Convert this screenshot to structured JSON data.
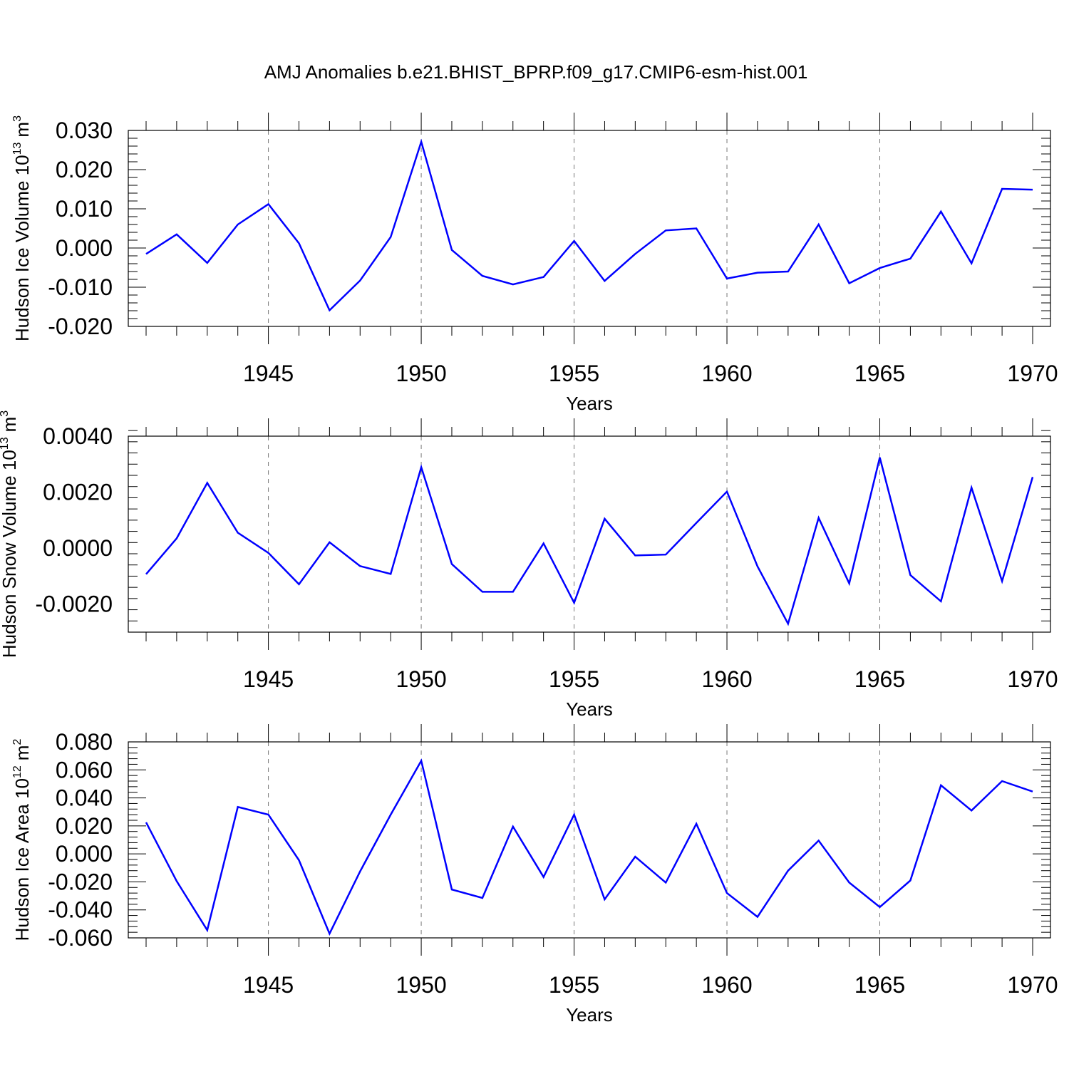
{
  "title": "AMJ Anomalies b.e21.BHIST_BPRP.f09_g17.CMIP6-esm-hist.001",
  "chart_data": [
    {
      "type": "line",
      "title": "AMJ Anomalies b.e21.BHIST_BPRP.f09_g17.CMIP6-esm-hist.001",
      "ylabel_main": "Hudson Ice Volume 10",
      "ylabel_exp": "13",
      "ylabel_unit": "m",
      "ylabel_unit_exp": "3",
      "xlabel": "Years",
      "xlim": [
        1941,
        1970
      ],
      "ylim": [
        -0.02,
        0.03
      ],
      "yticks": [
        -0.02,
        -0.01,
        0.0,
        0.01,
        0.02,
        0.03
      ],
      "ytick_labels": [
        "-0.020",
        "-0.010",
        "0.000",
        "0.010",
        "0.020",
        "0.030"
      ],
      "ytick_minor_step": 0.002,
      "xticks": [
        1945,
        1950,
        1955,
        1960,
        1965,
        1970
      ],
      "xtick_labels": [
        "1945",
        "1950",
        "1955",
        "1960",
        "1965",
        "1970"
      ],
      "grid": "dashed vertical at major x ticks",
      "line_color": "#0000ff",
      "series": [
        {
          "name": "Hudson Ice Volume",
          "x": [
            1941,
            1942,
            1943,
            1944,
            1945,
            1946,
            1947,
            1948,
            1949,
            1950,
            1951,
            1952,
            1953,
            1954,
            1955,
            1956,
            1957,
            1958,
            1959,
            1960,
            1961,
            1962,
            1963,
            1964,
            1965,
            1966,
            1967,
            1968,
            1969,
            1970
          ],
          "values": [
            -0.0015,
            0.0035,
            -0.0038,
            0.006,
            0.0112,
            0.0012,
            -0.0159,
            -0.0083,
            0.0028,
            0.0271,
            -0.0005,
            -0.0071,
            -0.0093,
            -0.0074,
            0.0018,
            -0.0084,
            -0.0015,
            0.0045,
            0.005,
            -0.0078,
            -0.0063,
            -0.006,
            0.006,
            -0.009,
            -0.0051,
            -0.0027,
            0.0093,
            -0.0039,
            0.0151,
            0.0149
          ]
        }
      ]
    },
    {
      "type": "line",
      "ylabel_main": "Hudson Snow Volume 10",
      "ylabel_exp": "13",
      "ylabel_unit": "m",
      "ylabel_unit_exp": "3",
      "xlabel": "Years",
      "xlim": [
        1941,
        1970
      ],
      "ylim": [
        -0.003,
        0.004
      ],
      "yticks": [
        -0.002,
        0.0,
        0.002,
        0.004
      ],
      "ytick_labels": [
        "-0.0020",
        "0.0000",
        "0.0020",
        "0.0040"
      ],
      "ytick_minor_step": 0.0004,
      "xticks": [
        1945,
        1950,
        1955,
        1960,
        1965,
        1970
      ],
      "xtick_labels": [
        "1945",
        "1950",
        "1955",
        "1960",
        "1965",
        "1970"
      ],
      "grid": "dashed vertical at major x ticks",
      "line_color": "#0000ff",
      "series": [
        {
          "name": "Hudson Snow Volume",
          "x": [
            1941,
            1942,
            1943,
            1944,
            1945,
            1946,
            1947,
            1948,
            1949,
            1950,
            1951,
            1952,
            1953,
            1954,
            1955,
            1956,
            1957,
            1958,
            1959,
            1960,
            1961,
            1962,
            1963,
            1964,
            1965,
            1966,
            1967,
            1968,
            1969,
            1970
          ],
          "values": [
            -0.00093,
            0.00035,
            0.00233,
            0.00055,
            -0.00017,
            -0.00129,
            0.00021,
            -0.00064,
            -0.00092,
            0.00289,
            -0.00057,
            -0.00156,
            -0.00156,
            0.00017,
            -0.00195,
            0.00105,
            -0.00026,
            -0.00023,
            0.0009,
            0.00202,
            -0.00065,
            -0.0027,
            0.00108,
            -0.00126,
            0.00324,
            -0.00096,
            -0.0019,
            0.00216,
            -0.00118,
            0.00254
          ]
        }
      ]
    },
    {
      "type": "line",
      "ylabel_main": "Hudson Ice Area 10",
      "ylabel_exp": "12",
      "ylabel_unit": "m",
      "ylabel_unit_exp": "2",
      "xlabel": "Years",
      "xlim": [
        1941,
        1970
      ],
      "ylim": [
        -0.06,
        0.08
      ],
      "yticks": [
        -0.06,
        -0.04,
        -0.02,
        0.0,
        0.02,
        0.04,
        0.06,
        0.08
      ],
      "ytick_labels": [
        "-0.060",
        "-0.040",
        "-0.020",
        "0.000",
        "0.020",
        "0.040",
        "0.060",
        "0.080"
      ],
      "ytick_minor_step": 0.004,
      "xticks": [
        1945,
        1950,
        1955,
        1960,
        1965,
        1970
      ],
      "xtick_labels": [
        "1945",
        "1950",
        "1955",
        "1960",
        "1965",
        "1970"
      ],
      "grid": "dashed vertical at major x ticks",
      "line_color": "#0000ff",
      "series": [
        {
          "name": "Hudson Ice Area",
          "x": [
            1941,
            1942,
            1943,
            1944,
            1945,
            1946,
            1947,
            1948,
            1949,
            1950,
            1951,
            1952,
            1953,
            1954,
            1955,
            1956,
            1957,
            1958,
            1959,
            1960,
            1961,
            1962,
            1963,
            1964,
            1965,
            1966,
            1967,
            1968,
            1969,
            1970
          ],
          "values": [
            0.0225,
            -0.0195,
            -0.0545,
            0.0335,
            0.028,
            -0.0045,
            -0.057,
            -0.0125,
            0.028,
            0.0665,
            -0.0255,
            -0.0315,
            0.0195,
            -0.0165,
            0.028,
            -0.0325,
            -0.002,
            -0.0205,
            0.0215,
            -0.028,
            -0.045,
            -0.012,
            0.0095,
            -0.0205,
            -0.038,
            -0.019,
            0.049,
            0.031,
            0.052,
            0.0445
          ]
        }
      ]
    }
  ]
}
